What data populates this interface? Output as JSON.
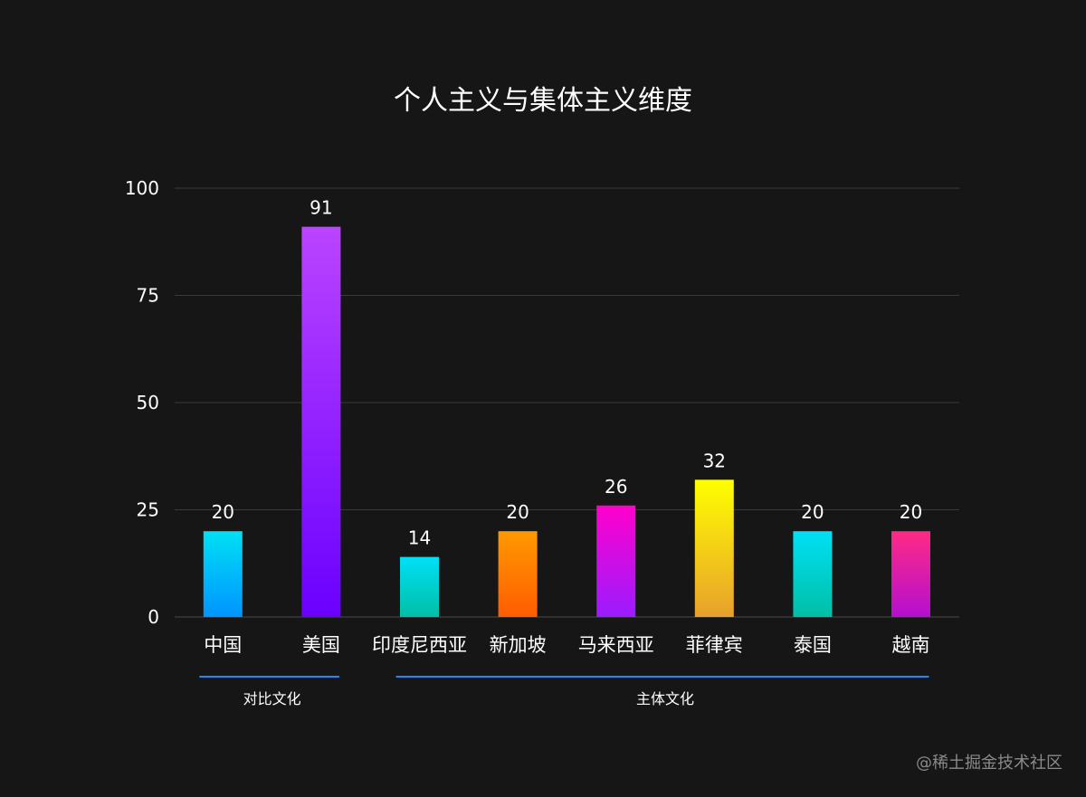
{
  "chart_data": {
    "type": "bar",
    "title": "个人主义与集体主义维度",
    "xlabel": "",
    "ylabel": "",
    "ylim": [
      0,
      100
    ],
    "yticks": [
      0,
      25,
      50,
      75,
      100
    ],
    "grid": true,
    "categories": [
      "中国",
      "美国",
      "印度尼西亚",
      "新加坡",
      "马来西亚",
      "菲律宾",
      "泰国",
      "越南"
    ],
    "values": [
      20,
      91,
      14,
      20,
      26,
      32,
      20,
      20
    ],
    "bar_gradients": [
      [
        "#00e0f5",
        "#0094ff"
      ],
      [
        "#bb44ff",
        "#6a00ff"
      ],
      [
        "#00e0f5",
        "#00bfa6"
      ],
      [
        "#ff9900",
        "#ff5c00"
      ],
      [
        "#ff00cc",
        "#9a1cff"
      ],
      [
        "#ffff00",
        "#e8a02c"
      ],
      [
        "#00e0f5",
        "#00bfa6"
      ],
      [
        "#ff2a85",
        "#b40fd0"
      ]
    ],
    "groups": [
      {
        "label": "对比文化",
        "start_index": 0,
        "end_index": 1
      },
      {
        "label": "主体文化",
        "start_index": 2,
        "end_index": 7
      }
    ],
    "group_line_color": "#1e88ff"
  },
  "watermark": "@稀土掘金技术社区"
}
